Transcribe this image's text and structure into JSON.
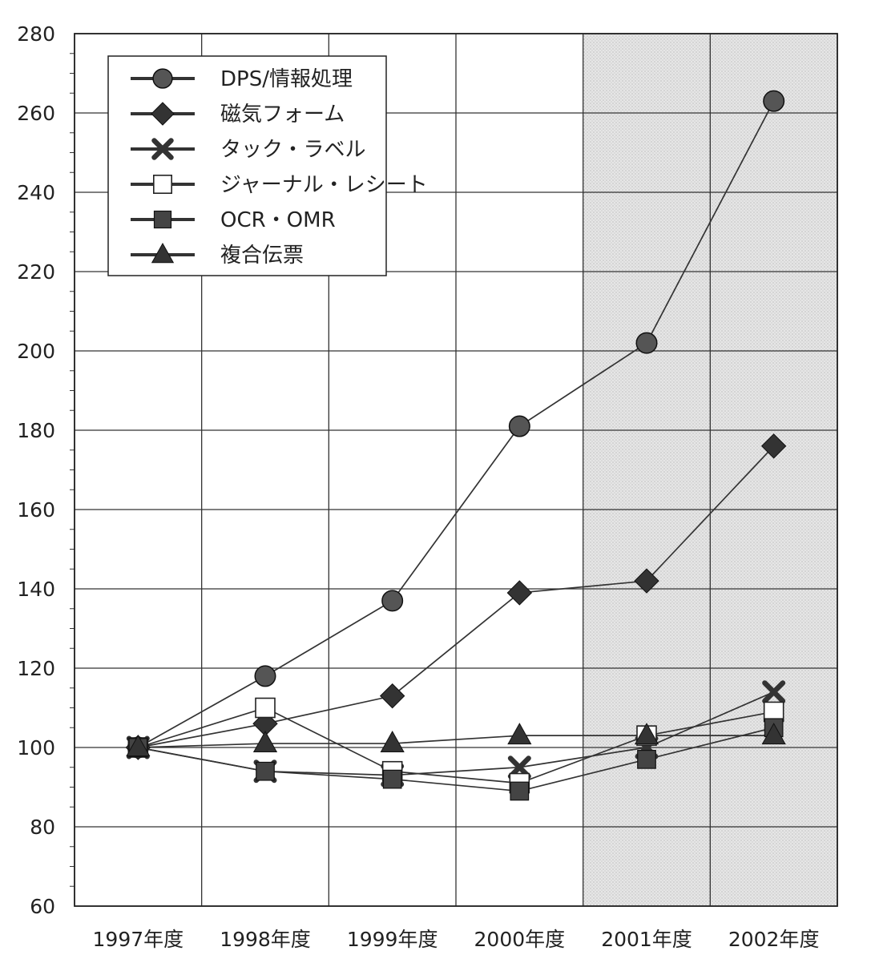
{
  "chart_data": {
    "type": "line",
    "title": "",
    "xlabel": "",
    "ylabel": "",
    "categories": [
      "1997年度",
      "1998年度",
      "1999年度",
      "2000年度",
      "2001年度",
      "2002年度"
    ],
    "ylim": [
      60,
      280
    ],
    "yticks": [
      60,
      80,
      100,
      120,
      140,
      160,
      180,
      200,
      220,
      240,
      260,
      280
    ],
    "grid": true,
    "legend_position": "top-left",
    "shaded_categories": [
      "2001年度",
      "2002年度"
    ],
    "series": [
      {
        "name": "DPS/情報処理",
        "marker": "circle",
        "values": [
          100,
          118,
          137,
          181,
          202,
          263
        ]
      },
      {
        "name": "磁気フォーム",
        "marker": "diamond",
        "values": [
          100,
          106,
          113,
          139,
          142,
          176
        ]
      },
      {
        "name": "タック・ラベル",
        "marker": "x",
        "values": [
          100,
          94,
          93,
          95,
          100,
          114
        ]
      },
      {
        "name": "ジャーナル・レシート",
        "marker": "open-square",
        "values": [
          100,
          110,
          94,
          91,
          103,
          109
        ]
      },
      {
        "name": "OCR・OMR",
        "marker": "filled-square",
        "values": [
          100,
          94,
          92,
          89,
          97,
          105
        ]
      },
      {
        "name": "複合伝票",
        "marker": "triangle",
        "values": [
          100,
          101,
          101,
          103,
          103,
          103
        ]
      }
    ]
  }
}
